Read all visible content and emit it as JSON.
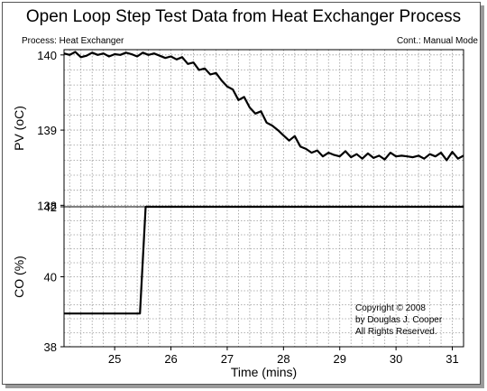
{
  "chart_data": {
    "type": "line",
    "title": "Open Loop Step Test Data from Heat Exchanger Process",
    "left_note": "Process: Heat Exchanger",
    "right_note": "Cont.: Manual Mode",
    "xlabel": "Time (mins)",
    "xlim": [
      24.1,
      31.2
    ],
    "x_ticks": [
      "25",
      "26",
      "27",
      "28",
      "29",
      "30",
      "31"
    ],
    "grid": true,
    "panels": [
      {
        "ylabel": "PV (oC)",
        "ylim": [
          137.98,
          140.07
        ],
        "y_ticks": [
          "138",
          "139",
          "140"
        ],
        "series": [
          {
            "x": [
              24.1,
              24.2,
              24.3,
              24.4,
              24.5,
              24.6,
              24.7,
              24.8,
              24.9,
              25.0,
              25.1,
              25.2,
              25.3,
              25.4,
              25.5,
              25.6,
              25.7,
              25.8,
              25.9,
              26.0,
              26.1,
              26.2,
              26.3,
              26.4,
              26.5,
              26.6,
              26.7,
              26.8,
              26.9,
              27.0,
              27.1,
              27.2,
              27.3,
              27.4,
              27.5,
              27.6,
              27.7,
              27.8,
              27.9,
              28.0,
              28.1,
              28.2,
              28.3,
              28.4,
              28.5,
              28.6,
              28.7,
              28.8,
              28.9,
              29.0,
              29.1,
              29.2,
              29.3,
              29.4,
              29.5,
              29.6,
              29.7,
              29.8,
              29.9,
              30.0,
              30.1,
              30.2,
              30.3,
              30.4,
              30.5,
              30.6,
              30.7,
              30.8,
              30.9,
              31.0,
              31.1,
              31.2
            ],
            "values": [
              140.02,
              140.0,
              140.04,
              139.97,
              139.99,
              140.03,
              140.0,
              140.02,
              139.98,
              140.01,
              140.0,
              140.03,
              140.01,
              139.98,
              140.03,
              140.0,
              140.02,
              139.99,
              139.96,
              139.98,
              139.94,
              139.97,
              139.88,
              139.9,
              139.8,
              139.82,
              139.74,
              139.76,
              139.66,
              139.58,
              139.54,
              139.4,
              139.44,
              139.3,
              139.22,
              139.25,
              139.1,
              139.06,
              139.0,
              138.93,
              138.86,
              138.92,
              138.78,
              138.75,
              138.7,
              138.73,
              138.65,
              138.7,
              138.67,
              138.65,
              138.72,
              138.64,
              138.68,
              138.62,
              138.69,
              138.63,
              138.66,
              138.61,
              138.7,
              138.65,
              138.66,
              138.65,
              138.64,
              138.66,
              138.62,
              138.68,
              138.65,
              138.7,
              138.6,
              138.71,
              138.62,
              138.66
            ]
          }
        ]
      },
      {
        "ylabel": "CO (%)",
        "ylim": [
          38,
          42
        ],
        "y_ticks": [
          "38",
          "40",
          "42"
        ],
        "series": [
          {
            "x": [
              24.1,
              25.45,
              25.55,
              31.2
            ],
            "values": [
              38.95,
              38.95,
              42.0,
              42.0
            ]
          }
        ]
      }
    ],
    "annotation": [
      "Copyright © 2008",
      "by Douglas J. Cooper",
      "All Rights Reserved."
    ]
  }
}
